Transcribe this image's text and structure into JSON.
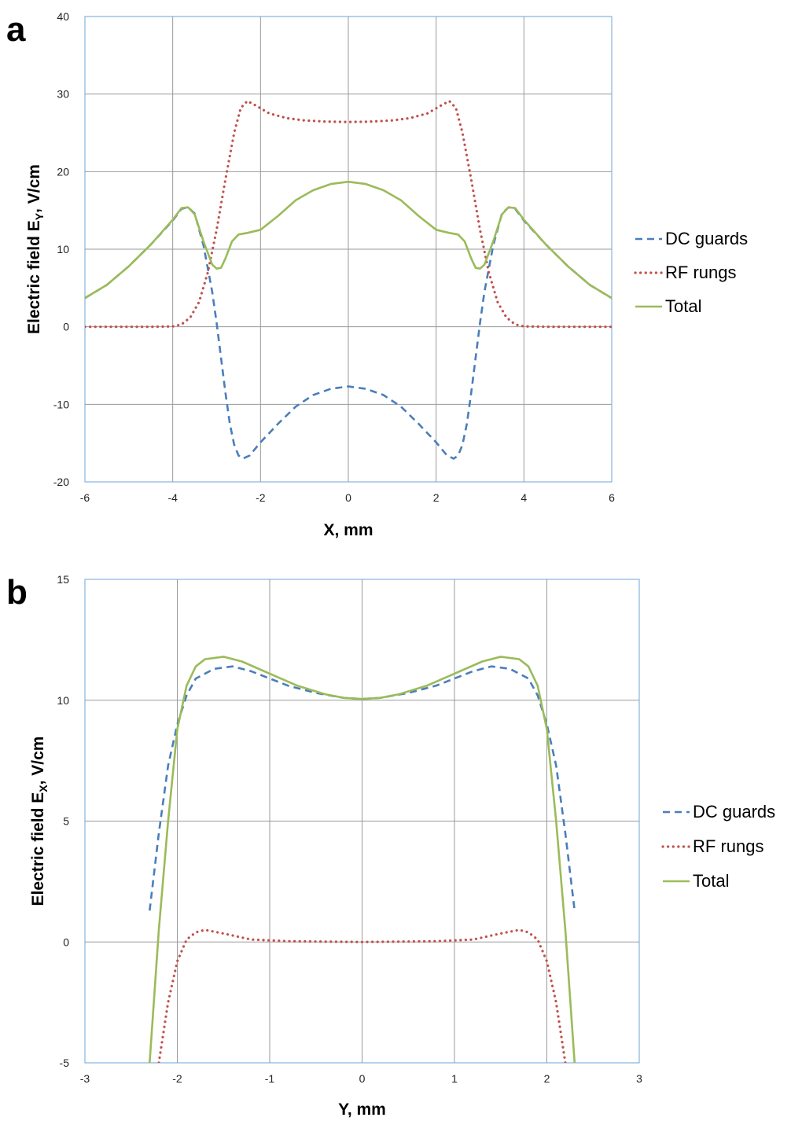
{
  "chart_data": [
    {
      "type": "line",
      "panel_label": "a",
      "xlabel": "X, mm",
      "ylabel_main": "Electric field E",
      "ylabel_sub": "Y",
      "ylabel_unit": ",  V/cm",
      "xlim": [
        -6,
        6
      ],
      "ylim": [
        -20,
        40
      ],
      "xticks": [
        -6,
        -4,
        -2,
        0,
        2,
        4,
        6
      ],
      "yticks": [
        -20,
        -10,
        0,
        10,
        20,
        30,
        40
      ],
      "grid": true,
      "plot_border_color": "#6ea6d8",
      "legend_position": "right",
      "series": [
        {
          "name": "DC guards",
          "color": "#4a7ebb",
          "style": "dashed",
          "points": [
            [
              -6,
              3.7
            ],
            [
              -5.5,
              5.4
            ],
            [
              -5,
              7.8
            ],
            [
              -4.5,
              10.6
            ],
            [
              -4,
              13.7
            ],
            [
              -3.8,
              15.2
            ],
            [
              -3.65,
              15.4
            ],
            [
              -3.5,
              14.6
            ],
            [
              -3.3,
              10.5
            ],
            [
              -3.1,
              4.5
            ],
            [
              -3.0,
              0.5
            ],
            [
              -2.9,
              -4.0
            ],
            [
              -2.8,
              -8.5
            ],
            [
              -2.7,
              -12.5
            ],
            [
              -2.6,
              -15.2
            ],
            [
              -2.5,
              -16.6
            ],
            [
              -2.4,
              -17.0
            ],
            [
              -2.25,
              -16.6
            ],
            [
              -2.0,
              -14.9
            ],
            [
              -1.6,
              -12.5
            ],
            [
              -1.2,
              -10.3
            ],
            [
              -0.8,
              -8.8
            ],
            [
              -0.4,
              -8.0
            ],
            [
              0,
              -7.7
            ],
            [
              0.4,
              -8.0
            ],
            [
              0.8,
              -8.8
            ],
            [
              1.2,
              -10.3
            ],
            [
              1.6,
              -12.5
            ],
            [
              2.0,
              -14.9
            ],
            [
              2.25,
              -16.6
            ],
            [
              2.4,
              -17.0
            ],
            [
              2.5,
              -16.6
            ],
            [
              2.6,
              -15.2
            ],
            [
              2.7,
              -12.5
            ],
            [
              2.8,
              -8.5
            ],
            [
              2.9,
              -4.0
            ],
            [
              3.0,
              0.5
            ],
            [
              3.1,
              4.5
            ],
            [
              3.3,
              10.5
            ],
            [
              3.5,
              14.6
            ],
            [
              3.65,
              15.4
            ],
            [
              3.8,
              15.2
            ],
            [
              4,
              13.7
            ],
            [
              4.5,
              10.6
            ],
            [
              5,
              7.8
            ],
            [
              5.5,
              5.4
            ],
            [
              6,
              3.7
            ]
          ]
        },
        {
          "name": "RF rungs",
          "color": "#c0504d",
          "style": "dotted",
          "points": [
            [
              -6,
              0
            ],
            [
              -4.5,
              0
            ],
            [
              -4,
              0.05
            ],
            [
              -3.8,
              0.3
            ],
            [
              -3.6,
              1.2
            ],
            [
              -3.4,
              3.2
            ],
            [
              -3.2,
              7.0
            ],
            [
              -3.0,
              12.5
            ],
            [
              -2.8,
              19.0
            ],
            [
              -2.6,
              25.0
            ],
            [
              -2.45,
              28.2
            ],
            [
              -2.3,
              29.1
            ],
            [
              -2.1,
              28.5
            ],
            [
              -1.8,
              27.5
            ],
            [
              -1.4,
              26.9
            ],
            [
              -1.0,
              26.6
            ],
            [
              -0.5,
              26.45
            ],
            [
              0,
              26.4
            ],
            [
              0.5,
              26.45
            ],
            [
              1.0,
              26.6
            ],
            [
              1.4,
              26.9
            ],
            [
              1.8,
              27.5
            ],
            [
              2.1,
              28.5
            ],
            [
              2.3,
              29.1
            ],
            [
              2.45,
              28.2
            ],
            [
              2.6,
              25.0
            ],
            [
              2.8,
              19.0
            ],
            [
              3.0,
              12.5
            ],
            [
              3.2,
              7.0
            ],
            [
              3.4,
              3.2
            ],
            [
              3.6,
              1.2
            ],
            [
              3.8,
              0.3
            ],
            [
              4,
              0.05
            ],
            [
              4.5,
              0
            ],
            [
              6,
              0
            ]
          ]
        },
        {
          "name": "Total",
          "color": "#9bbb59",
          "style": "solid",
          "points": [
            [
              -6,
              3.7
            ],
            [
              -5.5,
              5.4
            ],
            [
              -5,
              7.8
            ],
            [
              -4.5,
              10.6
            ],
            [
              -4,
              13.8
            ],
            [
              -3.8,
              15.3
            ],
            [
              -3.65,
              15.4
            ],
            [
              -3.5,
              14.5
            ],
            [
              -3.3,
              11.0
            ],
            [
              -3.1,
              8.0
            ],
            [
              -3.0,
              7.5
            ],
            [
              -2.9,
              7.6
            ],
            [
              -2.8,
              8.8
            ],
            [
              -2.65,
              11.0
            ],
            [
              -2.5,
              11.9
            ],
            [
              -2.3,
              12.1
            ],
            [
              -2.0,
              12.5
            ],
            [
              -1.6,
              14.3
            ],
            [
              -1.2,
              16.3
            ],
            [
              -0.8,
              17.6
            ],
            [
              -0.4,
              18.4
            ],
            [
              0,
              18.7
            ],
            [
              0.4,
              18.4
            ],
            [
              0.8,
              17.6
            ],
            [
              1.2,
              16.3
            ],
            [
              1.6,
              14.3
            ],
            [
              2.0,
              12.5
            ],
            [
              2.3,
              12.1
            ],
            [
              2.5,
              11.9
            ],
            [
              2.65,
              11.0
            ],
            [
              2.8,
              8.8
            ],
            [
              2.9,
              7.6
            ],
            [
              3.0,
              7.5
            ],
            [
              3.1,
              8.0
            ],
            [
              3.3,
              11.0
            ],
            [
              3.5,
              14.5
            ],
            [
              3.65,
              15.4
            ],
            [
              3.8,
              15.3
            ],
            [
              4,
              13.8
            ],
            [
              4.5,
              10.6
            ],
            [
              5,
              7.8
            ],
            [
              5.5,
              5.4
            ],
            [
              6,
              3.7
            ]
          ]
        }
      ]
    },
    {
      "type": "line",
      "panel_label": "b",
      "xlabel": "Y, mm",
      "ylabel_main": "Electric field E",
      "ylabel_sub": "X",
      "ylabel_unit": ",  V/cm",
      "xlim": [
        -3,
        3
      ],
      "ylim": [
        -5,
        15
      ],
      "xticks": [
        -3,
        -2,
        -1,
        0,
        1,
        2,
        3
      ],
      "yticks": [
        -5,
        0,
        5,
        10,
        15
      ],
      "grid": true,
      "plot_border_color": "#6ea6d8",
      "legend_position": "right",
      "series": [
        {
          "name": "DC guards",
          "color": "#4a7ebb",
          "style": "dashed",
          "points": [
            [
              -2.3,
              1.3
            ],
            [
              -2.2,
              4.5
            ],
            [
              -2.1,
              7.3
            ],
            [
              -2.0,
              9.0
            ],
            [
              -1.9,
              10.2
            ],
            [
              -1.8,
              10.9
            ],
            [
              -1.6,
              11.3
            ],
            [
              -1.4,
              11.4
            ],
            [
              -1.2,
              11.2
            ],
            [
              -1.0,
              10.9
            ],
            [
              -0.8,
              10.6
            ],
            [
              -0.5,
              10.3
            ],
            [
              -0.2,
              10.1
            ],
            [
              0,
              10.05
            ],
            [
              0.2,
              10.1
            ],
            [
              0.5,
              10.3
            ],
            [
              0.8,
              10.6
            ],
            [
              1.0,
              10.9
            ],
            [
              1.2,
              11.2
            ],
            [
              1.4,
              11.4
            ],
            [
              1.6,
              11.3
            ],
            [
              1.8,
              10.9
            ],
            [
              1.9,
              10.2
            ],
            [
              2.0,
              9.0
            ],
            [
              2.1,
              7.3
            ],
            [
              2.2,
              4.5
            ],
            [
              2.3,
              1.3
            ]
          ]
        },
        {
          "name": "RF rungs",
          "color": "#c0504d",
          "style": "dotted",
          "points": [
            [
              -2.2,
              -5.0
            ],
            [
              -2.1,
              -2.5
            ],
            [
              -2.0,
              -0.8
            ],
            [
              -1.9,
              0.1
            ],
            [
              -1.8,
              0.4
            ],
            [
              -1.7,
              0.5
            ],
            [
              -1.5,
              0.35
            ],
            [
              -1.2,
              0.1
            ],
            [
              -0.8,
              0.03
            ],
            [
              0,
              0
            ],
            [
              0.8,
              0.03
            ],
            [
              1.2,
              0.1
            ],
            [
              1.5,
              0.35
            ],
            [
              1.7,
              0.5
            ],
            [
              1.8,
              0.4
            ],
            [
              1.9,
              0.1
            ],
            [
              2.0,
              -0.8
            ],
            [
              2.1,
              -2.5
            ],
            [
              2.2,
              -5.0
            ]
          ]
        },
        {
          "name": "Total",
          "color": "#9bbb59",
          "style": "solid",
          "points": [
            [
              -2.3,
              -5.0
            ],
            [
              -2.2,
              0.5
            ],
            [
              -2.1,
              5.0
            ],
            [
              -2.0,
              8.8
            ],
            [
              -1.9,
              10.6
            ],
            [
              -1.8,
              11.4
            ],
            [
              -1.7,
              11.7
            ],
            [
              -1.5,
              11.8
            ],
            [
              -1.3,
              11.6
            ],
            [
              -1.0,
              11.1
            ],
            [
              -0.7,
              10.6
            ],
            [
              -0.4,
              10.25
            ],
            [
              -0.2,
              10.1
            ],
            [
              0,
              10.05
            ],
            [
              0.2,
              10.1
            ],
            [
              0.4,
              10.25
            ],
            [
              0.7,
              10.6
            ],
            [
              1.0,
              11.1
            ],
            [
              1.3,
              11.6
            ],
            [
              1.5,
              11.8
            ],
            [
              1.7,
              11.7
            ],
            [
              1.8,
              11.4
            ],
            [
              1.9,
              10.6
            ],
            [
              2.0,
              8.8
            ],
            [
              2.1,
              5.0
            ],
            [
              2.2,
              0.5
            ],
            [
              2.3,
              -5.0
            ]
          ]
        }
      ]
    }
  ]
}
